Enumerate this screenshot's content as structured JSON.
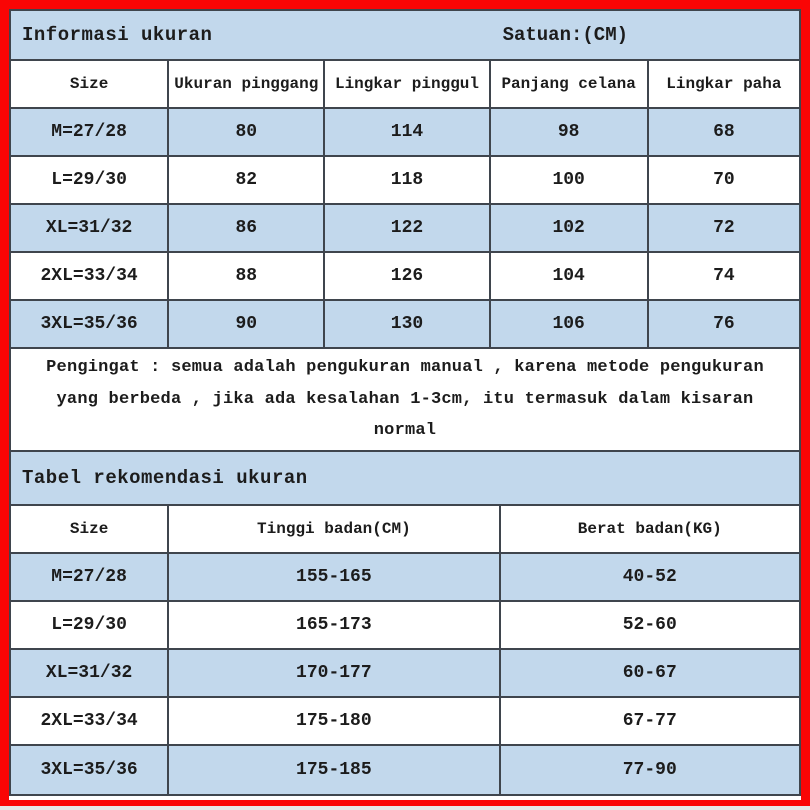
{
  "size_info": {
    "title": "Informasi ukuran",
    "unit": "Satuan:(CM)",
    "columns": [
      "Size",
      "Ukuran pinggang",
      "Lingkar pinggul",
      "Panjang celana",
      "Lingkar paha"
    ],
    "rows": [
      [
        "M=27/28",
        "80",
        "114",
        "98",
        "68"
      ],
      [
        "L=29/30",
        "82",
        "118",
        "100",
        "70"
      ],
      [
        "XL=31/32",
        "86",
        "122",
        "102",
        "72"
      ],
      [
        "2XL=33/34",
        "88",
        "126",
        "104",
        "74"
      ],
      [
        "3XL=35/36",
        "90",
        "130",
        "106",
        "76"
      ]
    ]
  },
  "reminder": "Pengingat : semua adalah pengukuran manual , karena metode pengukuran yang berbeda , jika ada kesalahan 1-3cm, itu termasuk dalam kisaran normal",
  "recommendation": {
    "title": "Tabel rekomendasi ukuran",
    "columns": [
      "Size",
      "Tinggi badan(CM)",
      "Berat badan(KG)"
    ],
    "rows": [
      [
        "M=27/28",
        "155-165",
        "40-52"
      ],
      [
        "L=29/30",
        "165-173",
        "52-60"
      ],
      [
        "XL=31/32",
        "170-177",
        "60-67"
      ],
      [
        "2XL=33/34",
        "175-180",
        "67-77"
      ],
      [
        "3XL=35/36",
        "175-185",
        "77-90"
      ]
    ]
  },
  "colors": {
    "frame_red": "#fa0505",
    "row_blue": "#c2d8ec",
    "grid_border": "#3f454d"
  }
}
